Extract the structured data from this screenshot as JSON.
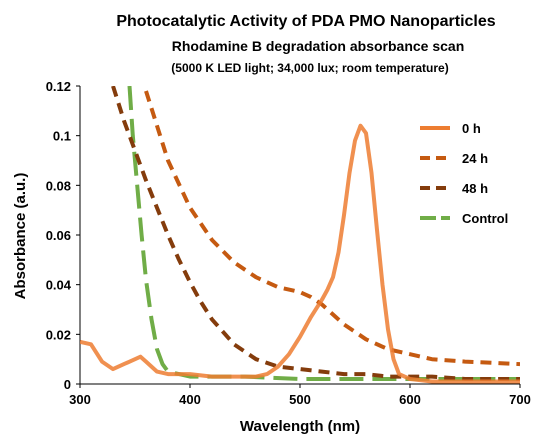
{
  "chart_data": {
    "type": "line",
    "title": "Photocatalytic Activity of PDA PMO Nanoparticles",
    "subtitle": "Rhodamine B degradation absorbance scan",
    "conditions": "(5000 K LED light; 34,000 lux; room temperature)",
    "xlabel": "Wavelength (nm)",
    "ylabel": "Absorbance (a.u.)",
    "xlim": [
      300,
      700
    ],
    "ylim": [
      0,
      0.12
    ],
    "x_ticks": [
      300,
      400,
      500,
      600,
      700
    ],
    "y_ticks": [
      0,
      0.02,
      0.04,
      0.06,
      0.08,
      0.1,
      0.12
    ],
    "x_tick_labels": [
      "300",
      "400",
      "500",
      "600",
      "700"
    ],
    "y_tick_labels": [
      "0",
      "0.02",
      "0.04",
      "0.06",
      "0.08",
      "0.1",
      "0.12"
    ],
    "grid": false,
    "legend_position": "top-right",
    "series": [
      {
        "name": "0 h",
        "color": "#ed7d31",
        "style": "solid",
        "x": [
          300,
          310,
          320,
          330,
          340,
          350,
          355,
          360,
          370,
          380,
          390,
          400,
          420,
          440,
          460,
          470,
          480,
          490,
          500,
          510,
          520,
          525,
          530,
          535,
          540,
          545,
          550,
          555,
          560,
          565,
          570,
          575,
          580,
          585,
          590,
          600,
          620,
          650,
          700
        ],
        "y": [
          0.017,
          0.016,
          0.009,
          0.006,
          0.008,
          0.01,
          0.011,
          0.009,
          0.005,
          0.004,
          0.004,
          0.004,
          0.003,
          0.003,
          0.003,
          0.004,
          0.007,
          0.012,
          0.019,
          0.027,
          0.034,
          0.038,
          0.043,
          0.053,
          0.068,
          0.085,
          0.098,
          0.104,
          0.101,
          0.085,
          0.062,
          0.04,
          0.022,
          0.01,
          0.004,
          0.002,
          0.001,
          0.001,
          0.001
        ]
      },
      {
        "name": "24 h",
        "color": "#c55a11",
        "style": "dash",
        "x": [
          360,
          380,
          400,
          420,
          440,
          460,
          480,
          500,
          510,
          520,
          530,
          540,
          560,
          580,
          600,
          620,
          650,
          700
        ],
        "y": [
          0.118,
          0.09,
          0.071,
          0.058,
          0.049,
          0.043,
          0.039,
          0.037,
          0.035,
          0.032,
          0.028,
          0.024,
          0.018,
          0.014,
          0.012,
          0.01,
          0.009,
          0.008
        ]
      },
      {
        "name": "48 h",
        "color": "#843c0c",
        "style": "dash",
        "x": [
          330,
          340,
          350,
          360,
          370,
          380,
          390,
          400,
          410,
          420,
          440,
          460,
          480,
          500,
          520,
          540,
          560,
          580,
          600,
          620,
          650,
          700
        ],
        "y": [
          0.12,
          0.106,
          0.094,
          0.082,
          0.071,
          0.06,
          0.05,
          0.041,
          0.033,
          0.026,
          0.016,
          0.01,
          0.007,
          0.006,
          0.005,
          0.004,
          0.004,
          0.003,
          0.003,
          0.003,
          0.002,
          0.002
        ]
      },
      {
        "name": "Control",
        "color": "#70ad47",
        "style": "longdash",
        "x": [
          345,
          348,
          352,
          356,
          360,
          365,
          370,
          375,
          380,
          390,
          400,
          420,
          450,
          500,
          550,
          600,
          650,
          700
        ],
        "y": [
          0.12,
          0.1,
          0.08,
          0.06,
          0.042,
          0.026,
          0.014,
          0.008,
          0.005,
          0.004,
          0.003,
          0.003,
          0.003,
          0.002,
          0.002,
          0.002,
          0.002,
          0.002
        ]
      }
    ]
  }
}
